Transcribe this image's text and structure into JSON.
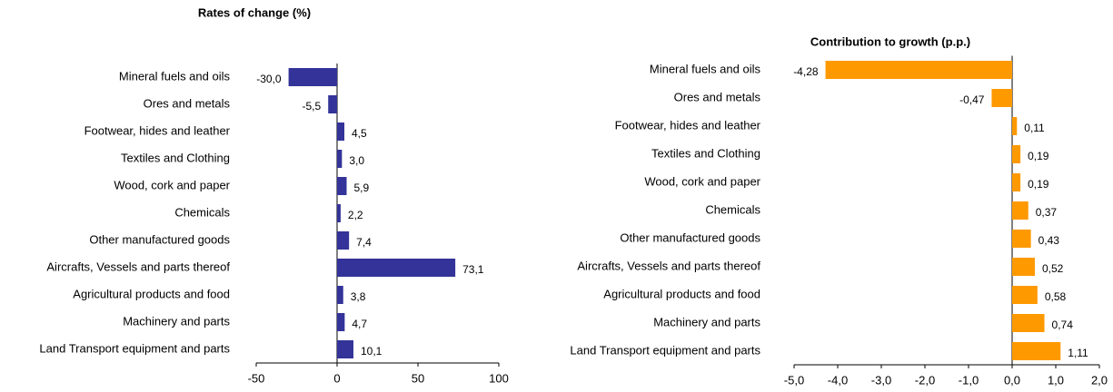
{
  "chart_data": [
    {
      "type": "bar",
      "orientation": "horizontal",
      "title": "Rates of change (%)",
      "color": "#333399",
      "categories": [
        "Mineral fuels and oils",
        "Ores and metals",
        "Footwear, hides and leather",
        "Textiles and Clothing",
        "Wood, cork and paper",
        "Chemicals",
        "Other manufactured goods",
        "Aircrafts, Vessels and parts thereof",
        "Agricultural products and food",
        "Machinery and parts",
        "Land Transport equipment and parts"
      ],
      "values": [
        -30.0,
        -5.5,
        4.5,
        3.0,
        5.9,
        2.2,
        7.4,
        73.1,
        3.8,
        4.7,
        10.1
      ],
      "value_labels": [
        "-30,0",
        "-5,5",
        "4,5",
        "3,0",
        "5,9",
        "2,2",
        "7,4",
        "73,1",
        "3,8",
        "4,7",
        "10,1"
      ],
      "xlim": [
        -50,
        100
      ],
      "xticks": [
        -50,
        0,
        50,
        100
      ]
    },
    {
      "type": "bar",
      "orientation": "horizontal",
      "title": "Contribution to growth (p.p.)",
      "color": "#ff9900",
      "categories": [
        "Mineral fuels and oils",
        "Ores and metals",
        "Footwear, hides and leather",
        "Textiles and Clothing",
        "Wood, cork and paper",
        "Chemicals",
        "Other manufactured goods",
        "Aircrafts, Vessels and parts thereof",
        "Agricultural products and food",
        "Machinery and parts",
        "Land Transport equipment and parts"
      ],
      "values": [
        -4.28,
        -0.47,
        0.11,
        0.19,
        0.19,
        0.37,
        0.43,
        0.52,
        0.58,
        0.74,
        1.11
      ],
      "value_labels": [
        "-4,28",
        "-0,47",
        "0,11",
        "0,19",
        "0,19",
        "0,37",
        "0,43",
        "0,52",
        "0,58",
        "0,74",
        "1,11"
      ],
      "xlim": [
        -5,
        2
      ],
      "xticks": [
        {
          "value": -5,
          "label": "-5,0"
        },
        {
          "value": -4,
          "label": "-4,0"
        },
        {
          "value": -3,
          "label": "-3,0"
        },
        {
          "value": -2,
          "label": "-2,0"
        },
        {
          "value": -1,
          "label": "-1,0"
        },
        {
          "value": 0,
          "label": "0,0"
        },
        {
          "value": 1,
          "label": "1,0"
        },
        {
          "value": 2,
          "label": "2,0"
        }
      ]
    }
  ]
}
